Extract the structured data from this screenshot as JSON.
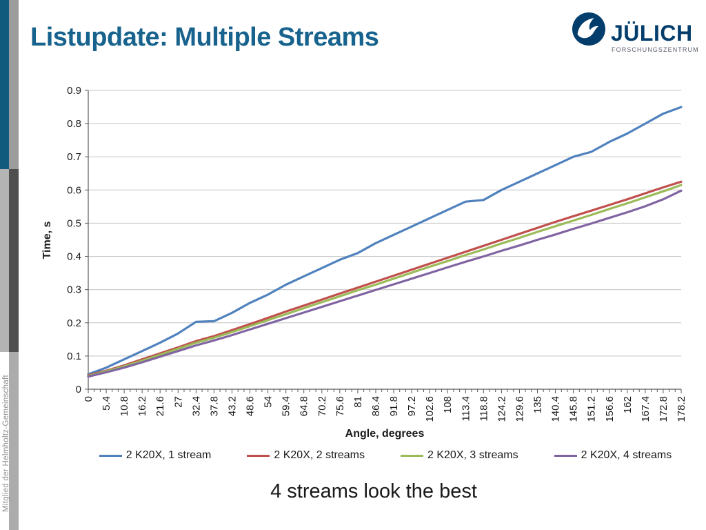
{
  "slide": {
    "title": "Listupdate: Multiple Streams",
    "caption": "4 streams look the best",
    "sidebar_text": "Mitglied der Helmholtz-Gemeinschaft"
  },
  "logo": {
    "name": "JÜLICH",
    "subtitle": "FORSCHUNGSZENTRUM",
    "brand_color": "#023D6B",
    "subtitle_color": "#5A5F6B"
  },
  "colors": {
    "title_text": "#17638D",
    "stripe_blue": "#0F5A7D",
    "stripe_gray_light": "#B4B4B4",
    "stripe_gray_dark": "#4F4F4F",
    "gridline": "#C3C3C3",
    "axis": "#595959"
  },
  "chart_data": {
    "type": "line",
    "title": "",
    "xlabel": "Angle, degrees",
    "ylabel": "Time, s",
    "xlim": [
      0,
      178.2
    ],
    "ylim": [
      0,
      0.9
    ],
    "grid": "horizontal-on",
    "legend_position": "bottom",
    "x": [
      0,
      5.4,
      10.8,
      16.2,
      21.6,
      27,
      32.4,
      37.8,
      43.2,
      48.6,
      54,
      59.4,
      64.8,
      70.2,
      75.6,
      81,
      86.4,
      91.8,
      97.2,
      102.6,
      108,
      113.4,
      118.8,
      124.2,
      129.6,
      135,
      140.4,
      145.8,
      151.2,
      156.6,
      162,
      167.4,
      172.8,
      178.2
    ],
    "xtick_labels": [
      "0",
      "5.4",
      "10.8",
      "16.2",
      "21.6",
      "27",
      "32.4",
      "37.8",
      "43.2",
      "48.6",
      "54",
      "59.4",
      "64.8",
      "70.2",
      "75.6",
      "81",
      "86.4",
      "91.8",
      "97.2",
      "102.6",
      "108",
      "113.4",
      "118.8",
      "124.2",
      "129.6",
      "135",
      "140.4",
      "145.8",
      "151.2",
      "156.6",
      "162",
      "167.4",
      "172.8",
      "178.2"
    ],
    "ytick_labels": [
      "0",
      "0.1",
      "0.2",
      "0.3",
      "0.4",
      "0.5",
      "0.6",
      "0.7",
      "0.8",
      "0.9"
    ],
    "minor_xtick_step": 1.8,
    "series": [
      {
        "name": "2 K20X, 1 stream",
        "color": "#4F81BD",
        "values": [
          0.045,
          0.065,
          0.09,
          0.115,
          0.14,
          0.168,
          0.203,
          0.205,
          0.23,
          0.26,
          0.285,
          0.315,
          0.34,
          0.365,
          0.39,
          0.41,
          0.44,
          0.465,
          0.49,
          0.515,
          0.54,
          0.565,
          0.57,
          0.6,
          0.625,
          0.65,
          0.675,
          0.7,
          0.715,
          0.745,
          0.77,
          0.8,
          0.83,
          0.85
        ]
      },
      {
        "name": "2 K20X, 2 streams",
        "color": "#C0504D",
        "values": [
          0.042,
          0.056,
          0.072,
          0.09,
          0.108,
          0.126,
          0.145,
          0.16,
          0.178,
          0.196,
          0.215,
          0.234,
          0.252,
          0.27,
          0.288,
          0.306,
          0.324,
          0.342,
          0.36,
          0.378,
          0.396,
          0.414,
          0.432,
          0.45,
          0.468,
          0.486,
          0.504,
          0.521,
          0.538,
          0.555,
          0.572,
          0.59,
          0.608,
          0.625
        ]
      },
      {
        "name": "2 K20X, 3 streams",
        "color": "#9BBB59",
        "values": [
          0.04,
          0.054,
          0.069,
          0.086,
          0.104,
          0.122,
          0.14,
          0.155,
          0.172,
          0.19,
          0.208,
          0.226,
          0.244,
          0.262,
          0.28,
          0.298,
          0.315,
          0.333,
          0.351,
          0.369,
          0.386,
          0.404,
          0.421,
          0.439,
          0.456,
          0.474,
          0.491,
          0.508,
          0.525,
          0.543,
          0.56,
          0.578,
          0.596,
          0.615
        ]
      },
      {
        "name": "2 K20X, 4 streams",
        "color": "#8064A2",
        "values": [
          0.038,
          0.051,
          0.065,
          0.081,
          0.098,
          0.115,
          0.132,
          0.147,
          0.163,
          0.18,
          0.197,
          0.214,
          0.231,
          0.248,
          0.265,
          0.282,
          0.299,
          0.316,
          0.333,
          0.35,
          0.367,
          0.384,
          0.4,
          0.417,
          0.433,
          0.45,
          0.466,
          0.483,
          0.499,
          0.516,
          0.533,
          0.551,
          0.572,
          0.598
        ]
      }
    ]
  }
}
